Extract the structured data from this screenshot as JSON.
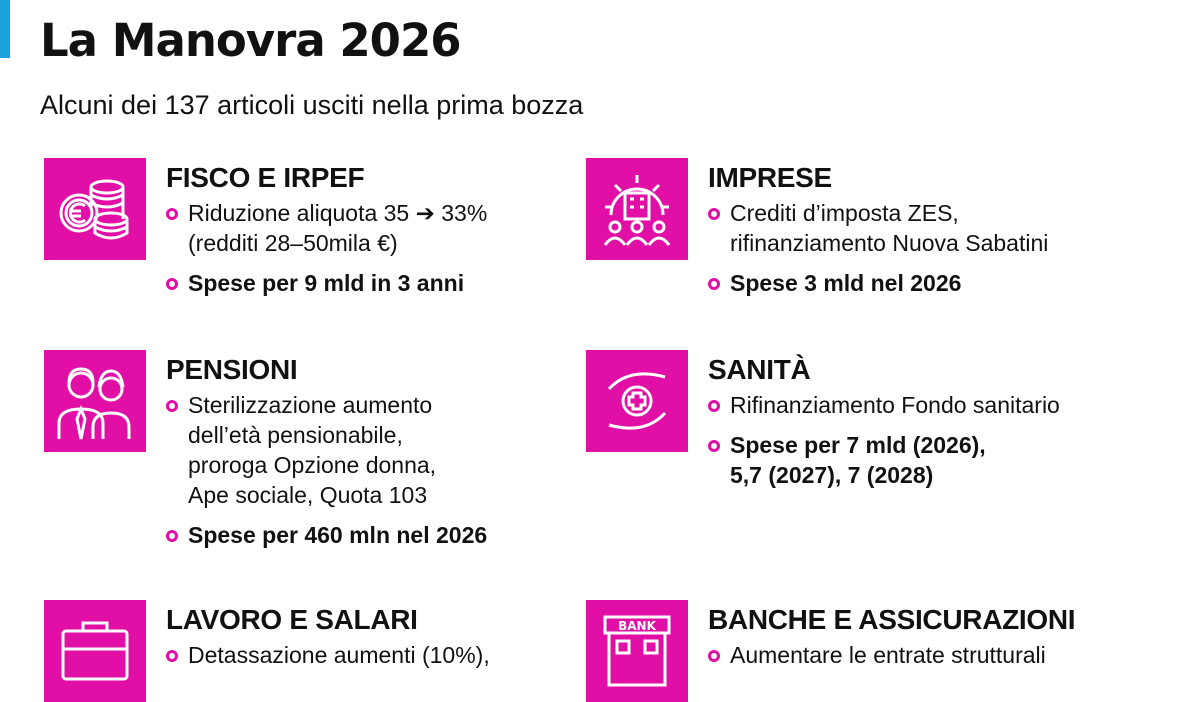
{
  "title": "La Manovra 2026",
  "subtitle": "Alcuni dei 137 articoli usciti nella prima bozza",
  "colors": {
    "accent": "#e20fa6",
    "bar": "#1aa3dc"
  },
  "sections": [
    {
      "title": "FISCO E IRPEF",
      "icon": "coins-euro-icon",
      "bullets": [
        {
          "lines": [
            "Riduzione aliquota 35 ➔ 33%",
            "(redditi 28–50mila €)"
          ],
          "bold": false
        },
        {
          "lines": [
            "Spese per 9 mld in 3 anni"
          ],
          "bold": true
        }
      ]
    },
    {
      "title": "IMPRESE",
      "icon": "factory-gear-people-icon",
      "bullets": [
        {
          "lines": [
            "Crediti d’imposta ZES,",
            "rifinanziamento Nuova Sabatini"
          ],
          "bold": false
        },
        {
          "lines": [
            "Spese 3 mld nel 2026"
          ],
          "bold": true
        }
      ]
    },
    {
      "title": "PENSIONI",
      "icon": "elderly-couple-icon",
      "bullets": [
        {
          "lines": [
            "Sterilizzazione aumento",
            "dell’età pensionabile,",
            "proroga Opzione donna,",
            "Ape sociale, Quota 103"
          ],
          "bold": false
        },
        {
          "lines": [
            "Spese per 460 mln nel 2026"
          ],
          "bold": true
        }
      ]
    },
    {
      "title": "SANITÀ",
      "icon": "hands-medical-cross-icon",
      "bullets": [
        {
          "lines": [
            "Rifinanziamento Fondo sanitario"
          ],
          "bold": false
        },
        {
          "lines": [
            "Spese per 7 mld (2026),",
            "5,7 (2027), 7 (2028)"
          ],
          "bold": true
        }
      ]
    },
    {
      "title": "LAVORO E SALARI",
      "icon": "briefcase-icon",
      "bullets": [
        {
          "lines": [
            "Detassazione aumenti (10%),"
          ],
          "bold": false
        }
      ]
    },
    {
      "title": "BANCHE E ASSICURAZIONI",
      "icon": "bank-building-icon",
      "bank_sign": "BANK",
      "bullets": [
        {
          "lines": [
            "Aumentare le entrate strutturali"
          ],
          "bold": false
        }
      ]
    }
  ]
}
